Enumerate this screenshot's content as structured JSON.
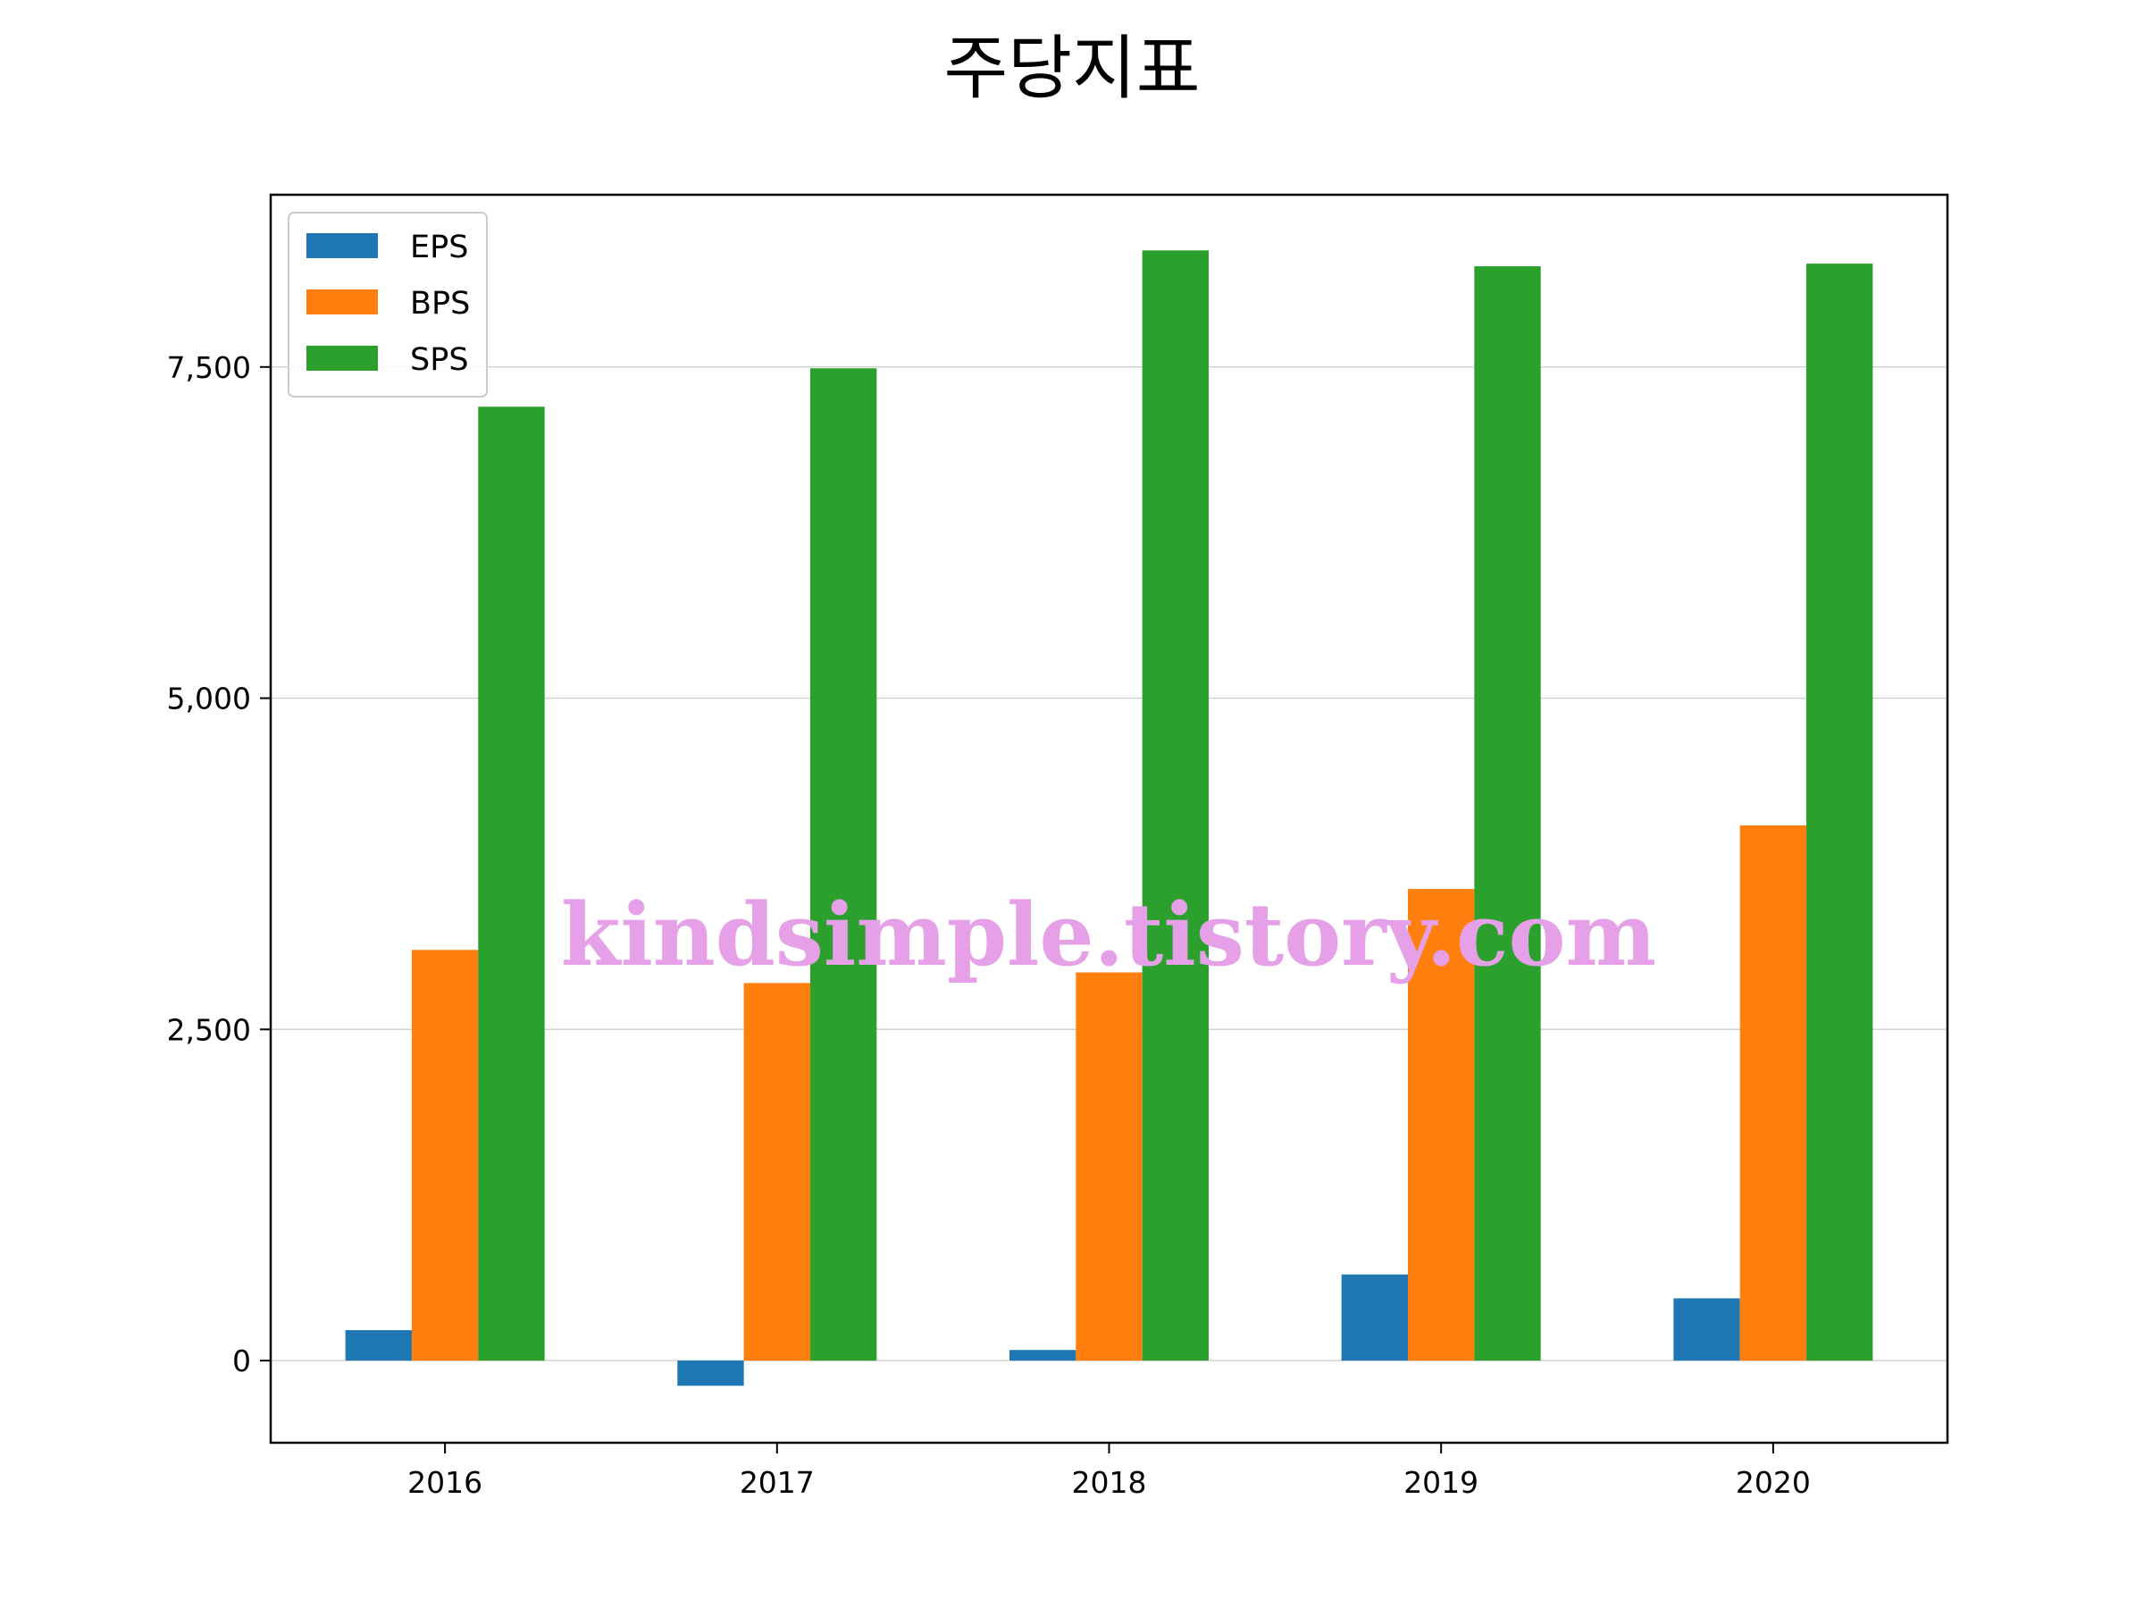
{
  "chart_data": {
    "type": "bar",
    "title": "주당지표",
    "xlabel": "",
    "ylabel": "",
    "categories": [
      "2016",
      "2017",
      "2018",
      "2019",
      "2020"
    ],
    "series": [
      {
        "name": "EPS",
        "color": "#1f77b4",
        "values": [
          230,
          -190,
          80,
          650,
          470
        ]
      },
      {
        "name": "BPS",
        "color": "#ff7f0e",
        "values": [
          3100,
          2850,
          2930,
          3560,
          4040
        ]
      },
      {
        "name": "SPS",
        "color": "#2ca02c",
        "values": [
          7200,
          7490,
          8380,
          8260,
          8280
        ]
      }
    ],
    "ylim": [
      -620,
      8800
    ],
    "yticks": [
      0,
      2500,
      5000,
      7500
    ],
    "ytick_labels": [
      "0",
      "2,500",
      "5,000",
      "7,500"
    ],
    "grid": "horizontal",
    "legend_position": "top-left",
    "watermark": "kindsimple.tistory.com"
  }
}
